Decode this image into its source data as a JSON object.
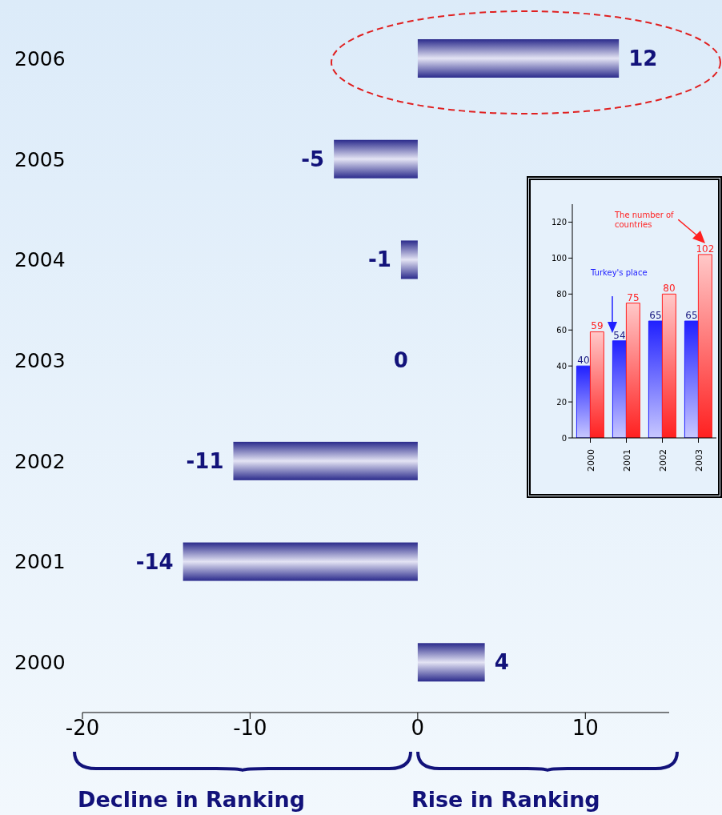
{
  "chart_data": [
    {
      "type": "bar",
      "orientation": "horizontal",
      "categories": [
        "2006",
        "2005",
        "2004",
        "2003",
        "2002",
        "2001",
        "2000"
      ],
      "values": [
        12,
        -5,
        -1,
        0,
        -11,
        -14,
        4
      ],
      "color": "#2b2b8c",
      "xlim": [
        -20,
        15
      ],
      "xticks": [
        -20,
        -10,
        0,
        10
      ],
      "data_labels": true,
      "annotations": [
        "Decline in Ranking",
        "Rise in Ranking"
      ]
    },
    {
      "type": "bar",
      "categories": [
        "2000",
        "2001",
        "2002",
        "2003"
      ],
      "series": [
        {
          "color": "#2020ff",
          "values": [
            40,
            54,
            65,
            65
          ]
        },
        {
          "color": "#ff2020",
          "values": [
            59,
            75,
            80,
            102
          ]
        }
      ],
      "ylim": [
        0,
        130
      ],
      "yticks": [
        0,
        20,
        40,
        60,
        80,
        100,
        120
      ],
      "data_labels": true,
      "annotations": [
        "Turkey's place",
        "The number of countries"
      ]
    }
  ]
}
